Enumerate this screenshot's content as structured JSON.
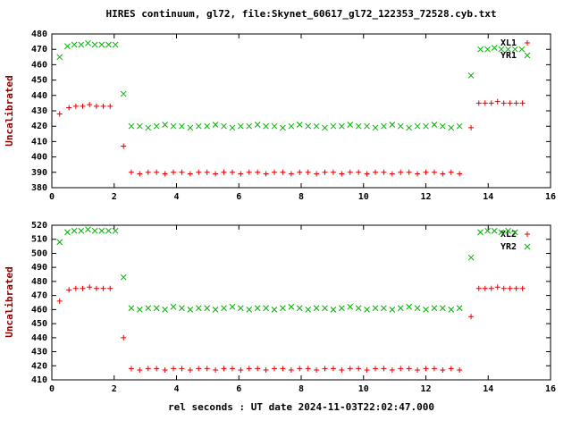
{
  "window": {
    "title": "HIRES continuum, gl72, file:Skynet_60617_gl72_122353_72528.cyb.txt"
  },
  "xlabel": "rel seconds : UT date 2024-11-03T22:02:47.000",
  "colors": {
    "background": "#ffffff",
    "axis": "#000000",
    "ylabel_text": "#8b0000",
    "series_red": "#e60000",
    "series_green": "#00b000"
  },
  "chart_data": [
    {
      "type": "scatter",
      "ylabel": "Uncalibrated",
      "xlim": [
        0,
        16
      ],
      "ylim": [
        380,
        480
      ],
      "x_tick_step": 2,
      "y_tick_step": 10,
      "grid": false,
      "legend_position": "top-right",
      "series": [
        {
          "name": "XL1",
          "marker": "plus",
          "color": "#e60000",
          "points": [
            [
              0.25,
              428
            ],
            [
              0.55,
              432
            ],
            [
              0.77,
              433
            ],
            [
              0.99,
              433
            ],
            [
              1.21,
              434
            ],
            [
              1.43,
              433
            ],
            [
              1.65,
              433
            ],
            [
              1.87,
              433
            ],
            [
              2.3,
              407
            ],
            [
              2.55,
              390
            ],
            [
              2.82,
              389
            ],
            [
              3.09,
              390
            ],
            [
              3.36,
              390
            ],
            [
              3.63,
              389
            ],
            [
              3.9,
              390
            ],
            [
              4.17,
              390
            ],
            [
              4.44,
              389
            ],
            [
              4.71,
              390
            ],
            [
              4.98,
              390
            ],
            [
              5.25,
              389
            ],
            [
              5.52,
              390
            ],
            [
              5.79,
              390
            ],
            [
              6.06,
              389
            ],
            [
              6.33,
              390
            ],
            [
              6.6,
              390
            ],
            [
              6.87,
              389
            ],
            [
              7.14,
              390
            ],
            [
              7.41,
              390
            ],
            [
              7.68,
              389
            ],
            [
              7.95,
              390
            ],
            [
              8.22,
              390
            ],
            [
              8.49,
              389
            ],
            [
              8.76,
              390
            ],
            [
              9.03,
              390
            ],
            [
              9.3,
              389
            ],
            [
              9.57,
              390
            ],
            [
              9.84,
              390
            ],
            [
              10.11,
              389
            ],
            [
              10.38,
              390
            ],
            [
              10.65,
              390
            ],
            [
              10.92,
              389
            ],
            [
              11.19,
              390
            ],
            [
              11.46,
              390
            ],
            [
              11.73,
              389
            ],
            [
              12,
              390
            ],
            [
              12.27,
              390
            ],
            [
              12.54,
              389
            ],
            [
              12.81,
              390
            ],
            [
              13.08,
              389
            ],
            [
              13.45,
              419
            ],
            [
              13.7,
              435
            ],
            [
              13.9,
              435
            ],
            [
              14.1,
              435
            ],
            [
              14.3,
              436
            ],
            [
              14.5,
              435
            ],
            [
              14.7,
              435
            ],
            [
              14.9,
              435
            ],
            [
              15.1,
              435
            ]
          ]
        },
        {
          "name": "YR1",
          "marker": "cross",
          "color": "#00b000",
          "points": [
            [
              0.25,
              465
            ],
            [
              0.5,
              472
            ],
            [
              0.72,
              473
            ],
            [
              0.94,
              473
            ],
            [
              1.16,
              474
            ],
            [
              1.38,
              473
            ],
            [
              1.6,
              473
            ],
            [
              1.82,
              473
            ],
            [
              2.04,
              473
            ],
            [
              2.3,
              441
            ],
            [
              2.55,
              420
            ],
            [
              2.82,
              420
            ],
            [
              3.09,
              419
            ],
            [
              3.36,
              420
            ],
            [
              3.63,
              421
            ],
            [
              3.9,
              420
            ],
            [
              4.17,
              420
            ],
            [
              4.44,
              419
            ],
            [
              4.71,
              420
            ],
            [
              4.98,
              420
            ],
            [
              5.25,
              421
            ],
            [
              5.52,
              420
            ],
            [
              5.79,
              419
            ],
            [
              6.06,
              420
            ],
            [
              6.33,
              420
            ],
            [
              6.6,
              421
            ],
            [
              6.87,
              420
            ],
            [
              7.14,
              420
            ],
            [
              7.41,
              419
            ],
            [
              7.68,
              420
            ],
            [
              7.95,
              421
            ],
            [
              8.22,
              420
            ],
            [
              8.49,
              420
            ],
            [
              8.76,
              419
            ],
            [
              9.03,
              420
            ],
            [
              9.3,
              420
            ],
            [
              9.57,
              421
            ],
            [
              9.84,
              420
            ],
            [
              10.11,
              420
            ],
            [
              10.38,
              419
            ],
            [
              10.65,
              420
            ],
            [
              10.92,
              421
            ],
            [
              11.19,
              420
            ],
            [
              11.46,
              419
            ],
            [
              11.73,
              420
            ],
            [
              12,
              420
            ],
            [
              12.27,
              421
            ],
            [
              12.54,
              420
            ],
            [
              12.81,
              419
            ],
            [
              13.08,
              420
            ],
            [
              13.45,
              453
            ],
            [
              13.75,
              470
            ],
            [
              13.98,
              470
            ],
            [
              14.2,
              471
            ],
            [
              14.42,
              470
            ],
            [
              14.64,
              470
            ],
            [
              14.86,
              470
            ],
            [
              15.08,
              470
            ]
          ]
        }
      ]
    },
    {
      "type": "scatter",
      "ylabel": "Uncalibrated",
      "xlim": [
        0,
        16
      ],
      "ylim": [
        410,
        520
      ],
      "x_tick_step": 2,
      "y_tick_step": 10,
      "grid": false,
      "legend_position": "top-right",
      "series": [
        {
          "name": "XL2",
          "marker": "plus",
          "color": "#e60000",
          "points": [
            [
              0.25,
              466
            ],
            [
              0.55,
              474
            ],
            [
              0.77,
              475
            ],
            [
              0.99,
              475
            ],
            [
              1.21,
              476
            ],
            [
              1.43,
              475
            ],
            [
              1.65,
              475
            ],
            [
              1.87,
              475
            ],
            [
              2.3,
              440
            ],
            [
              2.55,
              418
            ],
            [
              2.82,
              417
            ],
            [
              3.09,
              418
            ],
            [
              3.36,
              418
            ],
            [
              3.63,
              417
            ],
            [
              3.9,
              418
            ],
            [
              4.17,
              418
            ],
            [
              4.44,
              417
            ],
            [
              4.71,
              418
            ],
            [
              4.98,
              418
            ],
            [
              5.25,
              417
            ],
            [
              5.52,
              418
            ],
            [
              5.79,
              418
            ],
            [
              6.06,
              417
            ],
            [
              6.33,
              418
            ],
            [
              6.6,
              418
            ],
            [
              6.87,
              417
            ],
            [
              7.14,
              418
            ],
            [
              7.41,
              418
            ],
            [
              7.68,
              417
            ],
            [
              7.95,
              418
            ],
            [
              8.22,
              418
            ],
            [
              8.49,
              417
            ],
            [
              8.76,
              418
            ],
            [
              9.03,
              418
            ],
            [
              9.3,
              417
            ],
            [
              9.57,
              418
            ],
            [
              9.84,
              418
            ],
            [
              10.11,
              417
            ],
            [
              10.38,
              418
            ],
            [
              10.65,
              418
            ],
            [
              10.92,
              417
            ],
            [
              11.19,
              418
            ],
            [
              11.46,
              418
            ],
            [
              11.73,
              417
            ],
            [
              12,
              418
            ],
            [
              12.27,
              418
            ],
            [
              12.54,
              417
            ],
            [
              12.81,
              418
            ],
            [
              13.08,
              417
            ],
            [
              13.45,
              455
            ],
            [
              13.7,
              475
            ],
            [
              13.9,
              475
            ],
            [
              14.1,
              475
            ],
            [
              14.3,
              476
            ],
            [
              14.5,
              475
            ],
            [
              14.7,
              475
            ],
            [
              14.9,
              475
            ],
            [
              15.1,
              475
            ]
          ]
        },
        {
          "name": "YR2",
          "marker": "cross",
          "color": "#00b000",
          "points": [
            [
              0.25,
              508
            ],
            [
              0.5,
              515
            ],
            [
              0.72,
              516
            ],
            [
              0.94,
              516
            ],
            [
              1.16,
              517
            ],
            [
              1.38,
              516
            ],
            [
              1.6,
              516
            ],
            [
              1.82,
              516
            ],
            [
              2.04,
              516
            ],
            [
              2.3,
              483
            ],
            [
              2.55,
              461
            ],
            [
              2.82,
              460
            ],
            [
              3.09,
              461
            ],
            [
              3.36,
              461
            ],
            [
              3.63,
              460
            ],
            [
              3.9,
              462
            ],
            [
              4.17,
              461
            ],
            [
              4.44,
              460
            ],
            [
              4.71,
              461
            ],
            [
              4.98,
              461
            ],
            [
              5.25,
              460
            ],
            [
              5.52,
              461
            ],
            [
              5.79,
              462
            ],
            [
              6.06,
              461
            ],
            [
              6.33,
              460
            ],
            [
              6.6,
              461
            ],
            [
              6.87,
              461
            ],
            [
              7.14,
              460
            ],
            [
              7.41,
              461
            ],
            [
              7.68,
              462
            ],
            [
              7.95,
              461
            ],
            [
              8.22,
              460
            ],
            [
              8.49,
              461
            ],
            [
              8.76,
              461
            ],
            [
              9.03,
              460
            ],
            [
              9.3,
              461
            ],
            [
              9.57,
              462
            ],
            [
              9.84,
              461
            ],
            [
              10.11,
              460
            ],
            [
              10.38,
              461
            ],
            [
              10.65,
              461
            ],
            [
              10.92,
              460
            ],
            [
              11.19,
              461
            ],
            [
              11.46,
              462
            ],
            [
              11.73,
              461
            ],
            [
              12,
              460
            ],
            [
              12.27,
              461
            ],
            [
              12.54,
              461
            ],
            [
              12.81,
              460
            ],
            [
              13.08,
              461
            ],
            [
              13.45,
              497
            ],
            [
              13.75,
              515
            ],
            [
              13.98,
              516
            ],
            [
              14.2,
              516
            ],
            [
              14.42,
              515
            ],
            [
              14.64,
              516
            ],
            [
              14.86,
              515
            ]
          ]
        }
      ]
    }
  ]
}
